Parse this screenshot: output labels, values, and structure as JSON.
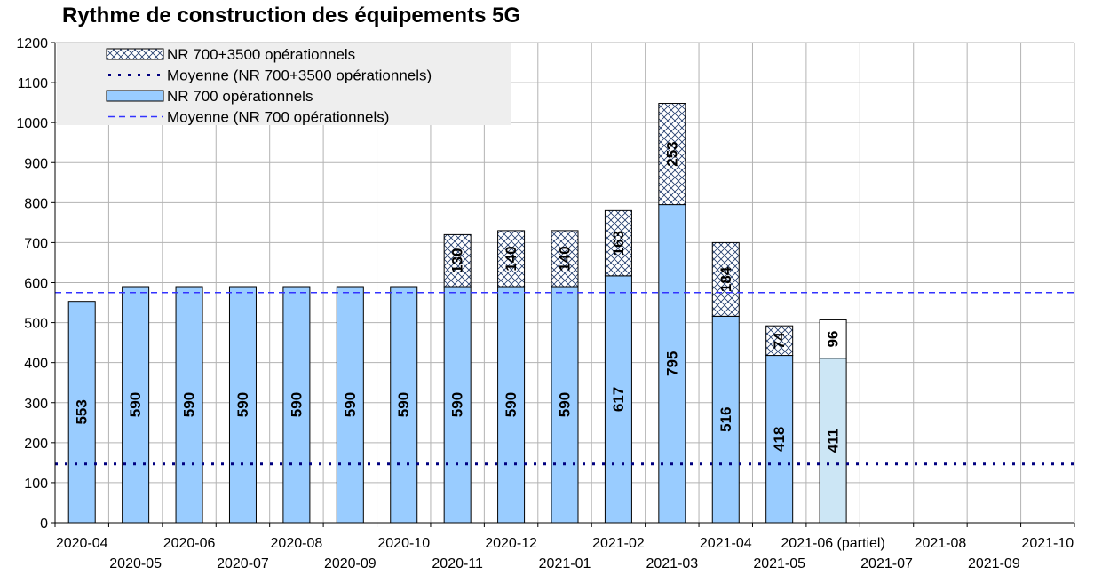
{
  "chart_data": {
    "type": "bar",
    "stacked": true,
    "title": "Rythme de construction des équipements 5G",
    "xlabel": "",
    "ylabel": "",
    "ylim": [
      0,
      1200
    ],
    "yticks": [
      0,
      100,
      200,
      300,
      400,
      500,
      600,
      700,
      800,
      900,
      1000,
      1100,
      1200
    ],
    "grid": true,
    "legend_position": "top-left",
    "categories": [
      "2020-04",
      "2020-05",
      "2020-06",
      "2020-07",
      "2020-08",
      "2020-09",
      "2020-10",
      "2020-11",
      "2020-12",
      "2021-01",
      "2021-02",
      "2021-03",
      "2021-04",
      "2021-05",
      "2021-06 (partiel)",
      "2021-07",
      "2021-08",
      "2021-09",
      "2021-10"
    ],
    "partial_category": "2021-06 (partiel)",
    "series": [
      {
        "name": "NR 700 opérationnels",
        "color": "#99ccff",
        "partial_color": "#cce6f5",
        "values": [
          553,
          590,
          590,
          590,
          590,
          590,
          590,
          590,
          590,
          590,
          617,
          795,
          516,
          418,
          411,
          null,
          null,
          null,
          null
        ]
      },
      {
        "name": "NR 700+3500 opérationnels",
        "color": "#99ccff",
        "pattern": "crosshatch",
        "values": [
          null,
          null,
          null,
          null,
          null,
          null,
          null,
          130,
          140,
          140,
          163,
          253,
          184,
          74,
          96,
          null,
          null,
          null,
          null
        ]
      }
    ],
    "reference_lines": [
      {
        "name": "Moyenne (NR 700+3500 opérationnels)",
        "value": 147,
        "style": "dotted",
        "color": "#000080"
      },
      {
        "name": "Moyenne (NR 700 opérationnels)",
        "value": 575,
        "style": "dashed",
        "color": "#3333ff"
      }
    ],
    "legend": [
      {
        "label": "NR 700+3500 opérationnels",
        "kind": "hatch"
      },
      {
        "label": "Moyenne (NR 700+3500 opérationnels)",
        "kind": "dotted"
      },
      {
        "label": "NR 700 opérationnels",
        "kind": "solid"
      },
      {
        "label": "Moyenne (NR 700 opérationnels)",
        "kind": "dashed"
      }
    ],
    "colors": {
      "grid": "#b3b3b3",
      "axis": "#000000",
      "legend_bg": "#eeeeee",
      "hatch": "#1f3a6b",
      "bar_edge": "#000000"
    }
  }
}
